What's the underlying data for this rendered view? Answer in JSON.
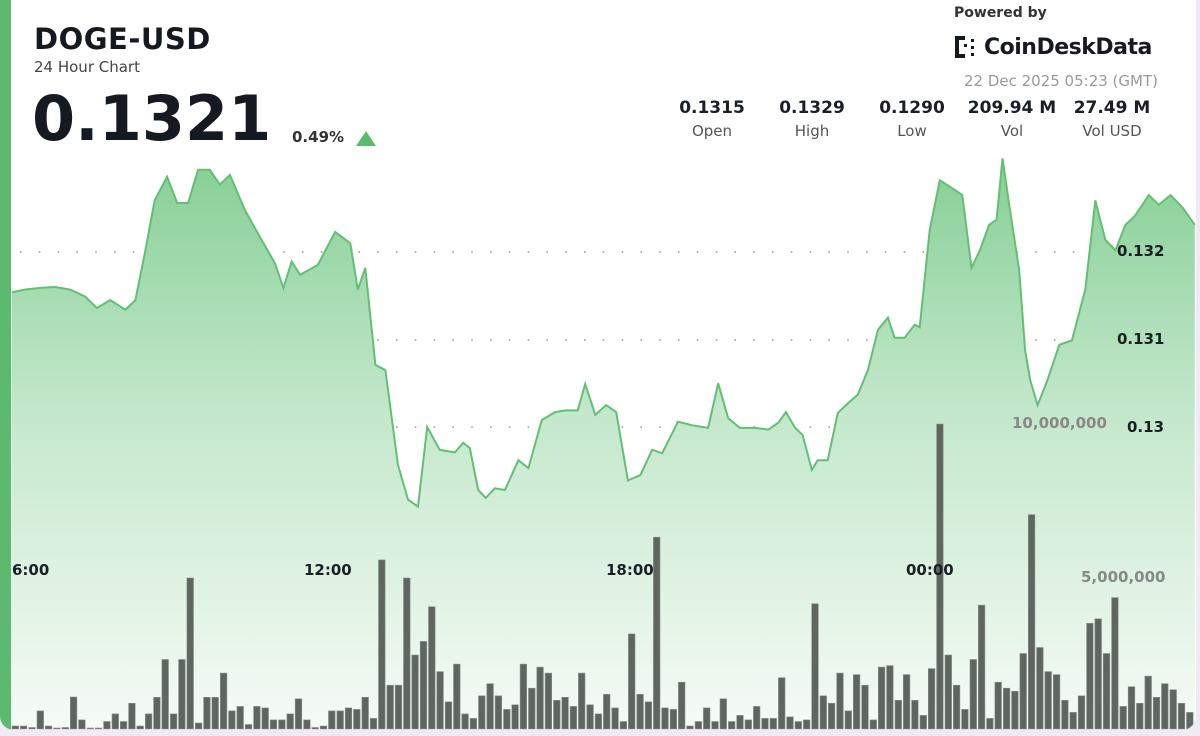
{
  "header": {
    "symbol": "DOGE-USD",
    "subtitle": "24 Hour Chart",
    "price": "0.1321",
    "change": "0.49%",
    "change_direction": "up"
  },
  "branding": {
    "powered_by": "Powered by",
    "logo_text": "CoinDeskData",
    "timestamp": "22 Dec 2025 05:23 (GMT)"
  },
  "stats": [
    {
      "value": "0.1315",
      "label": "Open"
    },
    {
      "value": "0.1329",
      "label": "High"
    },
    {
      "value": "0.1290",
      "label": "Low"
    },
    {
      "value": "209.94 M",
      "label": "Vol"
    },
    {
      "value": "27.49 M",
      "label": "Vol USD"
    }
  ],
  "colors": {
    "accent": "#5cba6e",
    "line": "#62bf73",
    "fill_top": "#8ed39c",
    "volume_bar": "#5f6660"
  },
  "chart_data": {
    "type": "area",
    "price_axis": {
      "ticks": [
        "0.132",
        "0.131",
        "0.13"
      ],
      "range": [
        0.129,
        0.1333
      ]
    },
    "volume_axis": {
      "ticks": [
        "10,000,000",
        "5,000,000"
      ]
    },
    "time_axis": {
      "ticks": [
        "6:00",
        "12:00",
        "18:00",
        "00:00"
      ]
    },
    "grid": "dotted",
    "price_series": [
      [
        "05:44",
        0.13154
      ],
      [
        "06:00",
        0.13157
      ],
      [
        "06:18",
        0.13159
      ],
      [
        "06:36",
        0.1316
      ],
      [
        "06:54",
        0.13157
      ],
      [
        "07:12",
        0.13149
      ],
      [
        "07:26",
        0.13136
      ],
      [
        "07:42",
        0.13145
      ],
      [
        "08:00",
        0.13134
      ],
      [
        "08:12",
        0.13145
      ],
      [
        "08:24",
        0.13202
      ],
      [
        "08:35",
        0.13259
      ],
      [
        "08:50",
        0.13286
      ],
      [
        "09:02",
        0.13256
      ],
      [
        "09:15",
        0.13256
      ],
      [
        "09:27",
        0.13294
      ],
      [
        "09:41",
        0.13294
      ],
      [
        "09:53",
        0.13277
      ],
      [
        "10:05",
        0.13288
      ],
      [
        "10:23",
        0.13248
      ],
      [
        "10:41",
        0.13217
      ],
      [
        "10:59",
        0.13187
      ],
      [
        "11:09",
        0.13159
      ],
      [
        "11:19",
        0.13189
      ],
      [
        "11:29",
        0.13174
      ],
      [
        "11:50",
        0.13185
      ],
      [
        "12:11",
        0.13223
      ],
      [
        "12:29",
        0.1321
      ],
      [
        "12:38",
        0.13157
      ],
      [
        "12:47",
        0.13182
      ],
      [
        "12:59",
        0.13071
      ],
      [
        "13:11",
        0.13065
      ],
      [
        "13:26",
        0.12957
      ],
      [
        "13:38",
        0.12917
      ],
      [
        "13:50",
        0.12909
      ],
      [
        "14:01",
        0.13
      ],
      [
        "14:16",
        0.12974
      ],
      [
        "14:34",
        0.12971
      ],
      [
        "14:44",
        0.12982
      ],
      [
        "14:52",
        0.12976
      ],
      [
        "15:02",
        0.12928
      ],
      [
        "15:11",
        0.12919
      ],
      [
        "15:22",
        0.1293
      ],
      [
        "15:34",
        0.12928
      ],
      [
        "15:50",
        0.12962
      ],
      [
        "16:02",
        0.12953
      ],
      [
        "16:18",
        0.13008
      ],
      [
        "16:34",
        0.13017
      ],
      [
        "16:47",
        0.13019
      ],
      [
        "17:01",
        0.13019
      ],
      [
        "17:10",
        0.13049
      ],
      [
        "17:22",
        0.13014
      ],
      [
        "17:35",
        0.13025
      ],
      [
        "17:47",
        0.13017
      ],
      [
        "18:01",
        0.12939
      ],
      [
        "18:16",
        0.12945
      ],
      [
        "18:30",
        0.12974
      ],
      [
        "18:42",
        0.1297
      ],
      [
        "19:01",
        0.13006
      ],
      [
        "19:18",
        0.13002
      ],
      [
        "19:37",
        0.12999
      ],
      [
        "19:49",
        0.1305
      ],
      [
        "20:01",
        0.1301
      ],
      [
        "20:15",
        0.12999
      ],
      [
        "20:33",
        0.12999
      ],
      [
        "20:49",
        0.12997
      ],
      [
        "21:01",
        0.13005
      ],
      [
        "21:10",
        0.13017
      ],
      [
        "21:21",
        0.12999
      ],
      [
        "21:30",
        0.12991
      ],
      [
        "21:41",
        0.12951
      ],
      [
        "21:48",
        0.12962
      ],
      [
        "22:00",
        0.12962
      ],
      [
        "22:12",
        0.13016
      ],
      [
        "22:24",
        0.13027
      ],
      [
        "22:36",
        0.13037
      ],
      [
        "22:48",
        0.13065
      ],
      [
        "23:00",
        0.13111
      ],
      [
        "23:12",
        0.13125
      ],
      [
        "23:20",
        0.13102
      ],
      [
        "23:32",
        0.13102
      ],
      [
        "23:44",
        0.13117
      ],
      [
        "23:50",
        0.13114
      ],
      [
        "00:02",
        0.13225
      ],
      [
        "00:14",
        0.13282
      ],
      [
        "00:32",
        0.13271
      ],
      [
        "00:41",
        0.13265
      ],
      [
        "00:52",
        0.13182
      ],
      [
        "01:02",
        0.13202
      ],
      [
        "01:13",
        0.13231
      ],
      [
        "01:22",
        0.13237
      ],
      [
        "01:29",
        0.13307
      ],
      [
        "01:38",
        0.13248
      ],
      [
        "01:49",
        0.13179
      ],
      [
        "01:56",
        0.13088
      ],
      [
        "02:02",
        0.13054
      ],
      [
        "02:11",
        0.13025
      ],
      [
        "02:23",
        0.13054
      ],
      [
        "02:37",
        0.13094
      ],
      [
        "02:52",
        0.13099
      ],
      [
        "03:08",
        0.13157
      ],
      [
        "03:20",
        0.13259
      ],
      [
        "03:32",
        0.13214
      ],
      [
        "03:44",
        0.13202
      ],
      [
        "03:56",
        0.13231
      ],
      [
        "04:08",
        0.13242
      ],
      [
        "04:24",
        0.13265
      ],
      [
        "04:36",
        0.13254
      ],
      [
        "04:50",
        0.13265
      ],
      [
        "05:05",
        0.1325
      ],
      [
        "05:19",
        0.13231
      ]
    ],
    "volume_millions": [
      0.1,
      0.1,
      0.05,
      0.6,
      0.1,
      0.02,
      0.05,
      1.06,
      0.3,
      0.02,
      0.02,
      0.25,
      0.5,
      0.25,
      0.85,
      0.1,
      0.5,
      1.05,
      2.3,
      0.5,
      2.3,
      5.0,
      0.2,
      1.05,
      1.05,
      1.85,
      0.6,
      0.75,
      0.15,
      0.75,
      0.7,
      0.3,
      0.3,
      0.5,
      1.0,
      0.3,
      0.05,
      0.1,
      0.6,
      0.6,
      0.7,
      0.65,
      1.05,
      0.35,
      5.6,
      1.45,
      1.45,
      5.0,
      2.45,
      2.9,
      4.05,
      1.9,
      0.9,
      2.15,
      0.5,
      0.35,
      1.1,
      1.5,
      1.1,
      0.65,
      0.8,
      2.15,
      1.35,
      2.05,
      1.85,
      0.95,
      1.05,
      0.75,
      1.85,
      0.8,
      0.5,
      1.15,
      0.7,
      0.25,
      3.15,
      1.15,
      0.9,
      6.35,
      0.7,
      0.65,
      1.55,
      0.1,
      0.25,
      0.7,
      0.25,
      1.0,
      0.25,
      0.45,
      0.3,
      0.75,
      0.35,
      0.35,
      1.7,
      0.4,
      0.25,
      0.3,
      4.15,
      1.1,
      0.85,
      1.85,
      0.6,
      1.8,
      1.45,
      0.3,
      2.05,
      2.1,
      0.95,
      1.8,
      0.95,
      0.45,
      2.0,
      10.1,
      2.45,
      1.45,
      0.65,
      2.3,
      4.1,
      0.35,
      1.55,
      1.35,
      1.25,
      2.5,
      7.1,
      2.7,
      1.9,
      1.8,
      0.95,
      0.55,
      1.1,
      3.5,
      3.65,
      2.5,
      4.35,
      0.75,
      1.4,
      0.85,
      1.75,
      1.05,
      1.5,
      1.3,
      0.85,
      0.55
    ]
  }
}
